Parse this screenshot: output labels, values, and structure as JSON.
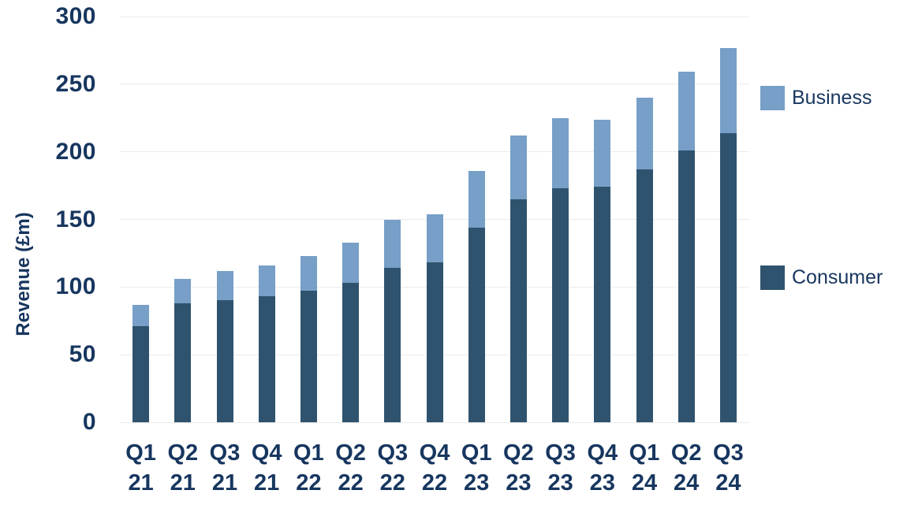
{
  "colors": {
    "background": "#FFFFFF",
    "text_navy": "#17365F",
    "gridline": "#EBEBEB",
    "consumer": "#2F536E",
    "business": "#779FC7"
  },
  "chart_data": {
    "type": "bar",
    "stacked": true,
    "title": "",
    "xlabel": "",
    "ylabel": "Revenue (£m)",
    "ylim": [
      0,
      300
    ],
    "yticks": [
      0,
      50,
      100,
      150,
      200,
      250,
      300
    ],
    "grid": true,
    "legend_position": "right-of-plot",
    "categories": [
      "Q1 21",
      "Q2 21",
      "Q3 21",
      "Q4 21",
      "Q1 22",
      "Q2 22",
      "Q3 22",
      "Q4 22",
      "Q1 23",
      "Q2 23",
      "Q3 23",
      "Q4 23",
      "Q1 24",
      "Q2 24",
      "Q3 24"
    ],
    "series": [
      {
        "name": "Consumer",
        "color": "#2F536E",
        "values": [
          71,
          88,
          90,
          93,
          97,
          103,
          114,
          118,
          144,
          165,
          173,
          174,
          187,
          201,
          214
        ]
      },
      {
        "name": "Business",
        "color": "#779FC7",
        "values": [
          16,
          18,
          22,
          23,
          26,
          30,
          36,
          36,
          42,
          47,
          52,
          50,
          53,
          58,
          63
        ]
      }
    ]
  },
  "legend": {
    "business_label": "Business",
    "consumer_label": "Consumer"
  }
}
